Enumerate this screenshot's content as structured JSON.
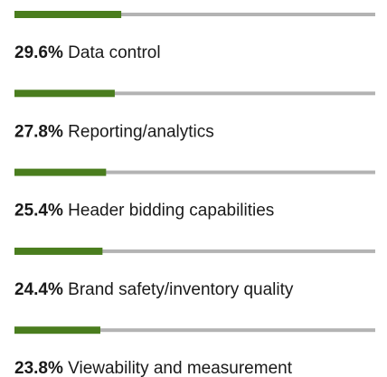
{
  "chart_data": {
    "type": "bar",
    "categories": [
      "Data control",
      "Reporting/analytics",
      "Header bidding capabilities",
      "Brand safety/inventory quality",
      "Viewability and measurement"
    ],
    "values": [
      29.6,
      27.8,
      25.4,
      24.4,
      23.8
    ],
    "value_labels": [
      "29.6%",
      "27.8%",
      "25.4%",
      "24.4%",
      "23.8%"
    ],
    "xlim": [
      0,
      100
    ],
    "color": "#4a7d1e",
    "track_color": "#b3b3b3"
  }
}
